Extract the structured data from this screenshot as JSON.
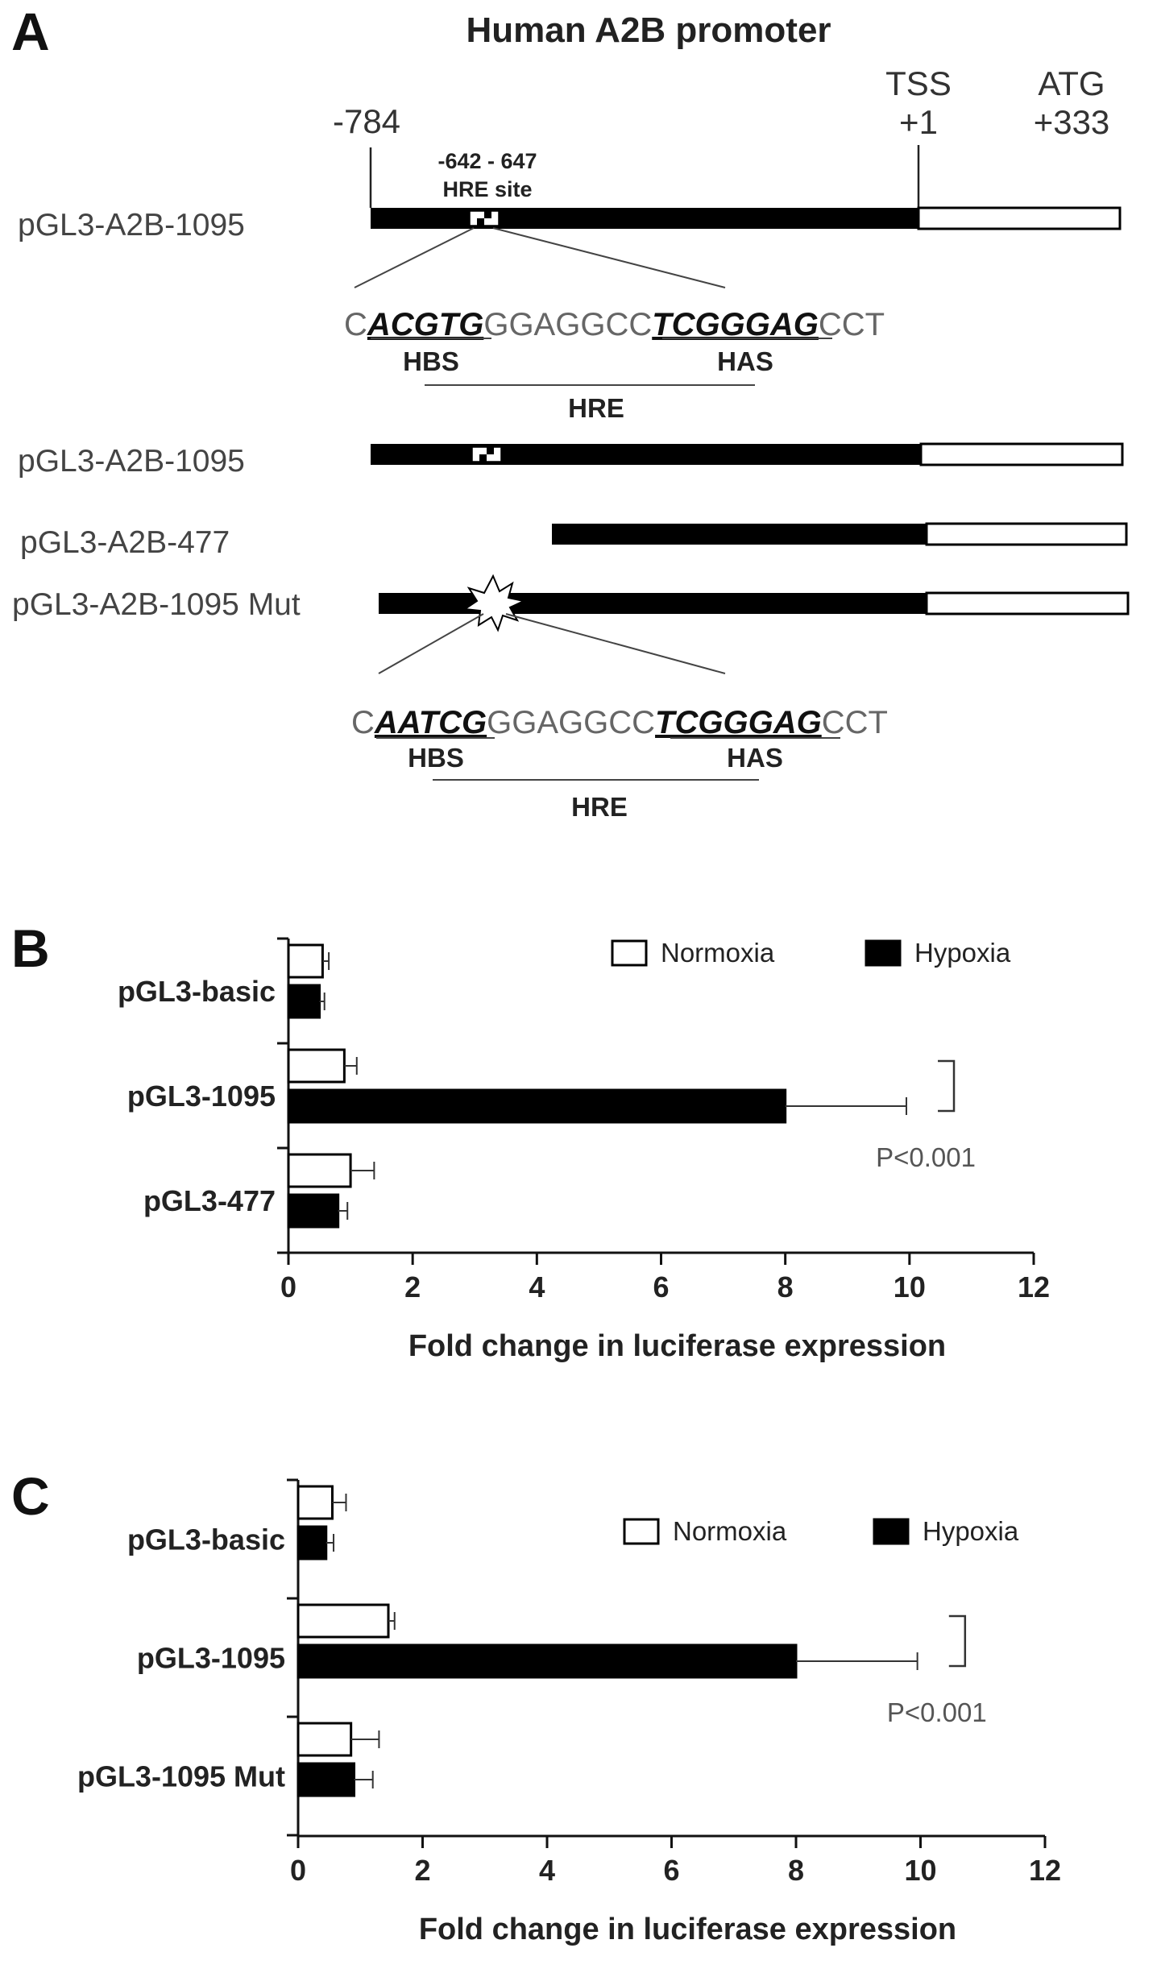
{
  "panel_a": {
    "letter": "A",
    "title": "Human A2B promoter",
    "markers": {
      "start": "-784",
      "tss_name": "TSS",
      "tss_pos": "+1",
      "atg_name": "ATG",
      "atg_pos": "+333",
      "hre_range": "-642 - 647",
      "hre_site": "HRE site"
    },
    "constructs": [
      "pGL3-A2B-1095",
      "pGL3-A2B-1095",
      "pGL3-A2B-477",
      "pGL3-A2B-1095 Mut"
    ],
    "wt_sequence": {
      "pre": "C",
      "hbs": "ACGTG",
      "mid": "GGAGGCC",
      "has": "TCGGGAG",
      "post": "CCT"
    },
    "mut_sequence": {
      "pre": "C",
      "hbs": "AATCG",
      "mid": "GGAGGCC",
      "has": "TCGGGAG",
      "post": "CCT"
    },
    "hbs_label": "HBS",
    "has_label": "HAS",
    "hre_label": "HRE"
  },
  "chart_data": [
    {
      "panel": "B",
      "type": "bar",
      "orientation": "horizontal",
      "categories": [
        "pGL3-basic",
        "pGL3-1095",
        "pGL3-477"
      ],
      "series": [
        {
          "name": "Normoxia",
          "values": [
            0.55,
            0.9,
            1.0
          ],
          "errors": [
            0.1,
            0.2,
            0.38
          ],
          "color": "#ffffff"
        },
        {
          "name": "Hypoxia",
          "values": [
            0.5,
            8.0,
            0.8
          ],
          "errors": [
            0.08,
            1.95,
            0.15
          ],
          "color": "#000000"
        }
      ],
      "xlabel": "Fold change in luciferase expression",
      "ylabel": "",
      "xlim": [
        0,
        12
      ],
      "xticks": [
        0,
        2,
        4,
        6,
        8,
        10,
        12
      ],
      "legend": "top-right",
      "annotation": "P<0.001",
      "grid": false
    },
    {
      "panel": "C",
      "type": "bar",
      "orientation": "horizontal",
      "categories": [
        "pGL3-basic",
        "pGL3-1095",
        "pGL3-1095 Mut"
      ],
      "series": [
        {
          "name": "Normoxia",
          "values": [
            0.55,
            1.45,
            0.85
          ],
          "errors": [
            0.22,
            0.1,
            0.45
          ],
          "color": "#ffffff"
        },
        {
          "name": "Hypoxia",
          "values": [
            0.45,
            8.0,
            0.9
          ],
          "errors": [
            0.12,
            1.95,
            0.3
          ],
          "color": "#000000"
        }
      ],
      "xlabel": "Fold change in luciferase expression",
      "ylabel": "",
      "xlim": [
        0,
        12
      ],
      "xticks": [
        0,
        2,
        4,
        6,
        8,
        10,
        12
      ],
      "legend": "top-right",
      "annotation": "P<0.001",
      "grid": false
    }
  ]
}
